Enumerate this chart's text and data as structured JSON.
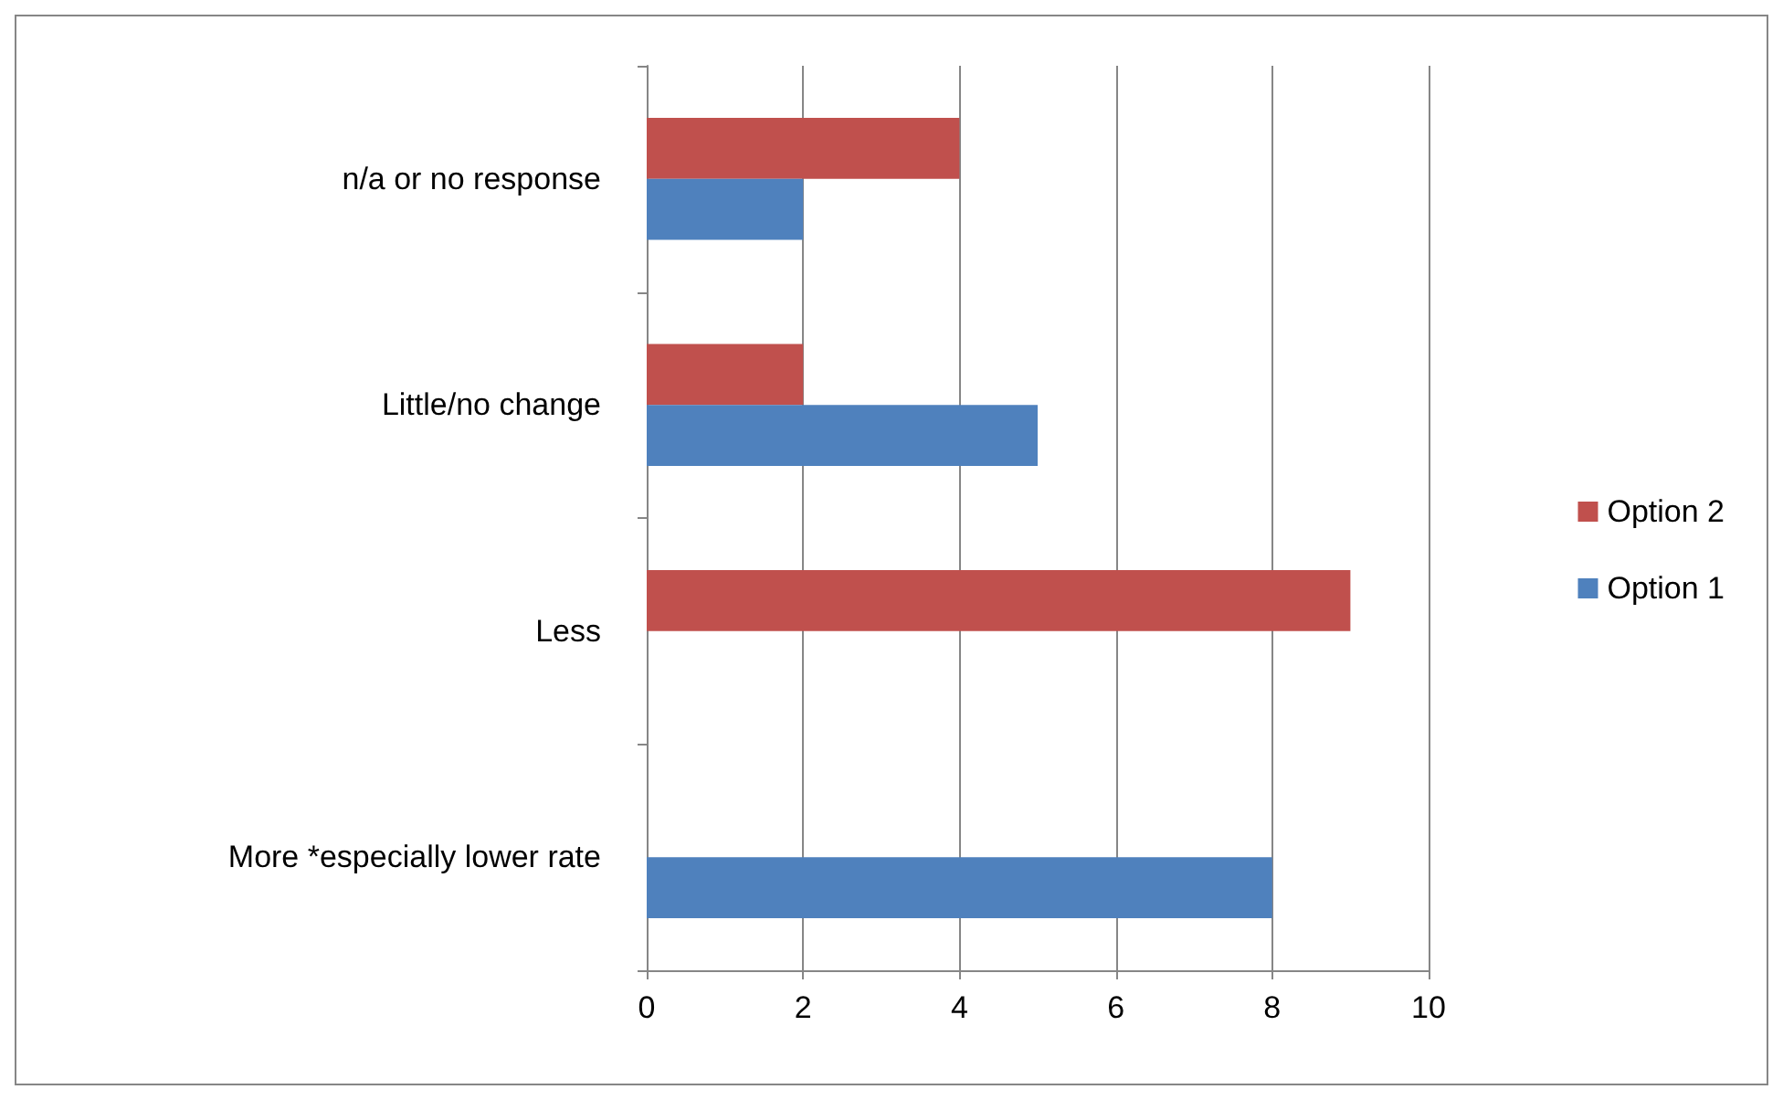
{
  "chart_data": {
    "type": "bar",
    "orientation": "horizontal",
    "categories": [
      "n/a or no response",
      "Little/no change",
      "Less",
      "More *especially lower rate"
    ],
    "series": [
      {
        "name": "Option 2",
        "color": "#c0504d",
        "values": [
          4,
          2,
          9,
          0
        ]
      },
      {
        "name": "Option 1",
        "color": "#4f81bd",
        "values": [
          2,
          5,
          0,
          8
        ]
      }
    ],
    "xlim": [
      0,
      10
    ],
    "xticks": [
      0,
      2,
      4,
      6,
      8,
      10
    ],
    "grid": "x",
    "legend": "right"
  }
}
